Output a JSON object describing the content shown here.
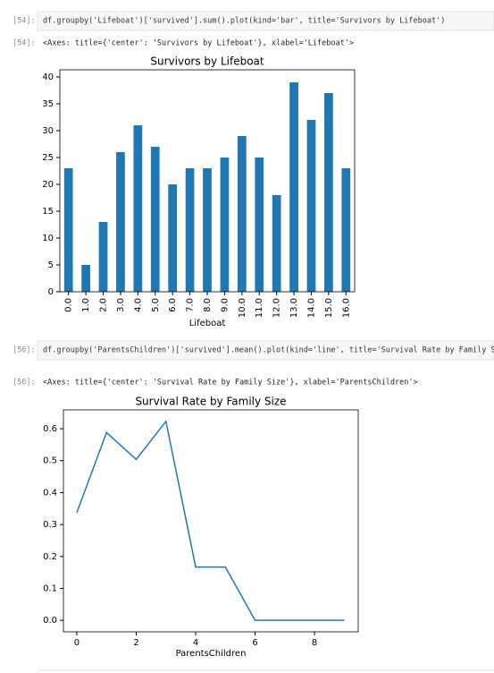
{
  "cells": [
    {
      "in_prompt": "[54]:",
      "code": "df.groupby('Lifeboat')['survived'].sum().plot(kind='bar', title='Survivors by Lifeboat')",
      "out_prompt": "[54]:",
      "output": "<Axes: title={'center': 'Survivors by Lifeboat'}, xlabel='Lifeboat'>"
    },
    {
      "in_prompt": "[56]:",
      "code": "df.groupby('ParentsChildren')['survived'].mean().plot(kind='line', title='Survival Rate by Family Size')",
      "out_prompt": "[56]:",
      "output": "<Axes: title={'center': 'Survival Rate by Family Size'}, xlabel='ParentsChildren'>"
    }
  ],
  "chart_data": [
    {
      "type": "bar",
      "title": "Survivors by Lifeboat",
      "xlabel": "Lifeboat",
      "color": "#1f77b4",
      "categories": [
        "0.0",
        "1.0",
        "2.0",
        "3.0",
        "4.0",
        "5.0",
        "6.0",
        "7.0",
        "8.0",
        "9.0",
        "10.0",
        "11.0",
        "12.0",
        "13.0",
        "14.0",
        "15.0",
        "16.0"
      ],
      "values": [
        23,
        5,
        13,
        26,
        31,
        27,
        20,
        23,
        23,
        25,
        29,
        25,
        18,
        39,
        32,
        37,
        23
      ],
      "ylim": [
        0,
        41.33
      ],
      "yticks": [
        0,
        5,
        10,
        15,
        20,
        25,
        30,
        35,
        40
      ]
    },
    {
      "type": "line",
      "title": "Survival Rate by Family Size",
      "xlabel": "ParentsChildren",
      "color": "#1f77b4",
      "x": [
        0,
        1,
        2,
        3,
        4,
        5,
        6,
        7,
        8,
        9
      ],
      "values": [
        0.337,
        0.588,
        0.504,
        0.623,
        0.167,
        0.167,
        0,
        0,
        0,
        0
      ],
      "xlim": [
        -0.45,
        9.47
      ],
      "xticks": [
        0,
        2,
        4,
        6,
        8
      ],
      "ylim": [
        -0.036,
        0.659
      ],
      "yticks": [
        {
          "value": 0,
          "label": "0.0"
        },
        0.1,
        0.2,
        0.3,
        0.4,
        0.5,
        0.6
      ]
    }
  ]
}
